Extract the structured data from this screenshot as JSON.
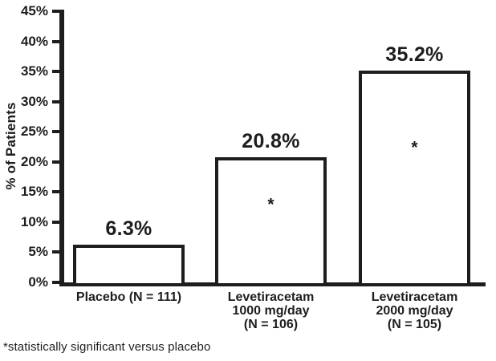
{
  "page": {
    "background": "#ffffff",
    "ink_color": "#1d1d1d"
  },
  "chart_data": {
    "type": "bar",
    "title": "",
    "xlabel": "",
    "ylabel": "% of Patients",
    "ylim": [
      0,
      45
    ],
    "ytick_step": 5,
    "yticks": [
      0,
      5,
      10,
      15,
      20,
      25,
      30,
      35,
      40,
      45
    ],
    "ytick_labels": [
      "0%",
      "5%",
      "10%",
      "15%",
      "20%",
      "25%",
      "30%",
      "35%",
      "40%",
      "45%"
    ],
    "grid": false,
    "legend": false,
    "bar_fill": "#ffffff",
    "bar_border_color": "#1d1d1d",
    "significance_marker": "*",
    "categories": [
      {
        "label_lines": [
          "Placebo (N = 111)"
        ],
        "value": 6.3,
        "value_label": "6.3%",
        "significant": false
      },
      {
        "label_lines": [
          "Levetiracetam",
          "1000 mg/day",
          "(N = 106)"
        ],
        "value": 20.8,
        "value_label": "20.8%",
        "significant": true
      },
      {
        "label_lines": [
          "Levetiracetam",
          "2000 mg/day",
          "(N = 105)"
        ],
        "value": 35.2,
        "value_label": "35.2%",
        "significant": true
      }
    ]
  },
  "footnote": "*statistically significant versus placebo"
}
